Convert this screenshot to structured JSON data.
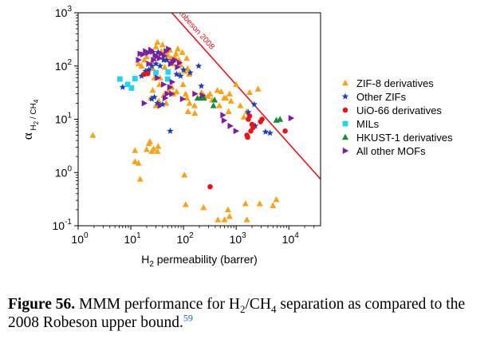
{
  "chart_data": {
    "type": "scatter",
    "title": "",
    "xlabel": "H2 permeability (barrer)",
    "ylabel": "α H2 / CH4",
    "x_scale": "log",
    "y_scale": "log",
    "xlim": [
      1,
      40000
    ],
    "ylim": [
      0.1,
      1000
    ],
    "x_ticks": [
      {
        "value": 1,
        "mantissa": "10",
        "exp": "0"
      },
      {
        "value": 10,
        "mantissa": "10",
        "exp": "1"
      },
      {
        "value": 100,
        "mantissa": "10",
        "exp": "2"
      },
      {
        "value": 1000,
        "mantissa": "10",
        "exp": "3"
      },
      {
        "value": 10000,
        "mantissa": "10",
        "exp": "4"
      }
    ],
    "y_ticks": [
      {
        "value": 0.1,
        "mantissa": "10",
        "exp": "-1"
      },
      {
        "value": 1,
        "mantissa": "10",
        "exp": "0"
      },
      {
        "value": 10,
        "mantissa": "10",
        "exp": "1"
      },
      {
        "value": 100,
        "mantissa": "10",
        "exp": "2"
      },
      {
        "value": 1000,
        "mantissa": "10",
        "exp": "3"
      }
    ],
    "grid": false,
    "legend_position": "right",
    "upper_bound": {
      "name": "Robeson 2008",
      "color": "#e8141b",
      "points": [
        [
          60,
          1000
        ],
        [
          40000,
          0.75
        ]
      ]
    },
    "series": [
      {
        "name": "ZIF-8 derivatives",
        "marker": "triangle-up",
        "color": "#f5a31a",
        "points": [
          [
            1.9,
            5
          ],
          [
            12,
            2.6
          ],
          [
            12,
            1.6
          ],
          [
            14,
            1.5
          ],
          [
            15,
            0.75
          ],
          [
            20,
            2.7
          ],
          [
            22,
            3.5
          ],
          [
            23,
            3.8
          ],
          [
            25,
            2.5
          ],
          [
            27,
            2.8
          ],
          [
            32,
            2.5
          ],
          [
            33,
            3.1
          ],
          [
            104,
            0.9
          ],
          [
            110,
            0.25
          ],
          [
            240,
            0.22
          ],
          [
            450,
            0.13
          ],
          [
            600,
            0.13
          ],
          [
            700,
            0.2
          ],
          [
            750,
            0.15
          ],
          [
            1500,
            0.26
          ],
          [
            1600,
            0.13
          ],
          [
            2800,
            0.26
          ],
          [
            5000,
            0.24
          ],
          [
            5800,
            0.31
          ],
          [
            30,
            230
          ],
          [
            32,
            280
          ],
          [
            33,
            180
          ],
          [
            38,
            190
          ],
          [
            40,
            250
          ],
          [
            45,
            130
          ],
          [
            48,
            180
          ],
          [
            50,
            160
          ],
          [
            55,
            200
          ],
          [
            58,
            140
          ],
          [
            62,
            110
          ],
          [
            68,
            150
          ],
          [
            72,
            170
          ],
          [
            78,
            210
          ],
          [
            82,
            130
          ],
          [
            88,
            105
          ],
          [
            95,
            180
          ],
          [
            105,
            80
          ],
          [
            115,
            140
          ],
          [
            120,
            90
          ],
          [
            128,
            70
          ],
          [
            25,
            120
          ],
          [
            23,
            200
          ],
          [
            20,
            150
          ],
          [
            16,
            100
          ],
          [
            18,
            130
          ],
          [
            14,
            110
          ],
          [
            26,
            90
          ],
          [
            28,
            60
          ],
          [
            36,
            60
          ],
          [
            44,
            95
          ],
          [
            52,
            35
          ],
          [
            60,
            40
          ],
          [
            64,
            30
          ],
          [
            74,
            33
          ],
          [
            84,
            70
          ],
          [
            98,
            45
          ],
          [
            110,
            30
          ],
          [
            116,
            25
          ],
          [
            122,
            14
          ],
          [
            130,
            20
          ],
          [
            162,
            18
          ],
          [
            164,
            13
          ],
          [
            220,
            32
          ],
          [
            245,
            28
          ],
          [
            290,
            27
          ],
          [
            320,
            30
          ],
          [
            350,
            23
          ],
          [
            440,
            35
          ],
          [
            480,
            18
          ],
          [
            520,
            33
          ],
          [
            590,
            25
          ],
          [
            640,
            25
          ],
          [
            720,
            14
          ],
          [
            750,
            30
          ],
          [
            800,
            22
          ],
          [
            1000,
            45
          ],
          [
            1200,
            18
          ],
          [
            1400,
            11
          ],
          [
            1600,
            14
          ],
          [
            1800,
            32
          ],
          [
            2600,
            37
          ],
          [
            24,
            25
          ],
          [
            26,
            35
          ],
          [
            30,
            18
          ],
          [
            34,
            22
          ],
          [
            35,
            45
          ],
          [
            42,
            28
          ],
          [
            47,
            20
          ]
        ]
      },
      {
        "name": "Other ZIFs",
        "marker": "star",
        "color": "#1a3cbf",
        "points": [
          [
            7,
            40
          ],
          [
            16,
            65
          ],
          [
            19,
            80
          ],
          [
            22,
            85
          ],
          [
            25,
            100
          ],
          [
            30,
            110
          ],
          [
            33,
            180
          ],
          [
            36,
            100
          ],
          [
            42,
            130
          ],
          [
            48,
            130
          ],
          [
            58,
            115
          ],
          [
            74,
            70
          ],
          [
            88,
            65
          ],
          [
            100,
            85
          ],
          [
            134,
            75
          ],
          [
            194,
            100
          ],
          [
            218,
            42
          ],
          [
            25,
            24
          ],
          [
            28,
            26
          ],
          [
            32,
            20
          ],
          [
            40,
            19
          ],
          [
            56,
            6
          ],
          [
            1700,
            13.5
          ],
          [
            2200,
            19
          ],
          [
            2300,
            7.5
          ],
          [
            3600,
            5.8
          ],
          [
            4400,
            5.5
          ]
        ]
      },
      {
        "name": "UiO-66 derivatives",
        "marker": "circle",
        "color": "#e8141b",
        "points": [
          [
            18,
            70
          ],
          [
            21,
            72
          ],
          [
            320,
            0.54
          ],
          [
            1600,
            5
          ],
          [
            1650,
            4.6
          ],
          [
            1700,
            10
          ],
          [
            1800,
            11.5
          ],
          [
            1900,
            6
          ],
          [
            2000,
            8
          ],
          [
            2100,
            7
          ],
          [
            2900,
            9
          ],
          [
            3100,
            10
          ],
          [
            8500,
            6
          ]
        ]
      },
      {
        "name": "MILs",
        "marker": "square",
        "color": "#22d3ec",
        "points": [
          [
            6.2,
            57
          ],
          [
            8.7,
            45
          ],
          [
            10.3,
            38.5
          ],
          [
            12,
            58
          ],
          [
            30,
            75
          ],
          [
            50,
            57
          ],
          [
            51,
            77
          ]
        ]
      },
      {
        "name": "HKUST-1 derivatives",
        "marker": "triangle-up",
        "color": "#1a8a38",
        "points": [
          [
            185,
            25
          ],
          [
            210,
            25
          ],
          [
            245,
            25
          ],
          [
            370,
            18
          ],
          [
            390,
            23
          ],
          [
            5800,
            9.6
          ],
          [
            6800,
            10
          ]
        ]
      },
      {
        "name": "All other MOFs",
        "marker": "triangle-right",
        "color": "#7b1fa0",
        "points": [
          [
            15,
            170
          ],
          [
            17,
            165
          ],
          [
            19,
            190
          ],
          [
            21,
            175
          ],
          [
            24,
            200
          ],
          [
            26,
            185
          ],
          [
            29,
            160
          ],
          [
            31,
            150
          ],
          [
            35,
            140
          ],
          [
            38,
            170
          ],
          [
            43,
            155
          ],
          [
            47,
            190
          ],
          [
            52,
            210
          ],
          [
            57,
            110
          ],
          [
            63,
            120
          ],
          [
            68,
            130
          ],
          [
            77,
            95
          ],
          [
            84,
            115
          ],
          [
            14,
            130
          ],
          [
            22,
            110
          ],
          [
            27,
            130
          ],
          [
            32,
            60
          ],
          [
            42,
            45
          ],
          [
            49,
            30
          ],
          [
            55,
            40
          ],
          [
            61,
            50
          ],
          [
            18,
            20
          ],
          [
            36,
            18
          ],
          [
            45,
            25
          ],
          [
            60,
            30
          ],
          [
            96,
            24
          ],
          [
            165,
            30
          ],
          [
            230,
            28
          ],
          [
            560,
            12
          ],
          [
            590,
            9.5
          ],
          [
            770,
            7.5
          ],
          [
            990,
            6
          ],
          [
            11000,
            10.5
          ]
        ]
      }
    ]
  },
  "caption": {
    "label": "Figure 56.",
    "text_before": "MMM performance for H",
    "sub1": "2",
    "slash": "/CH",
    "sub2": "4",
    "text_after": "separation as compared to the 2008 Robeson upper bound.",
    "ref": "59"
  }
}
